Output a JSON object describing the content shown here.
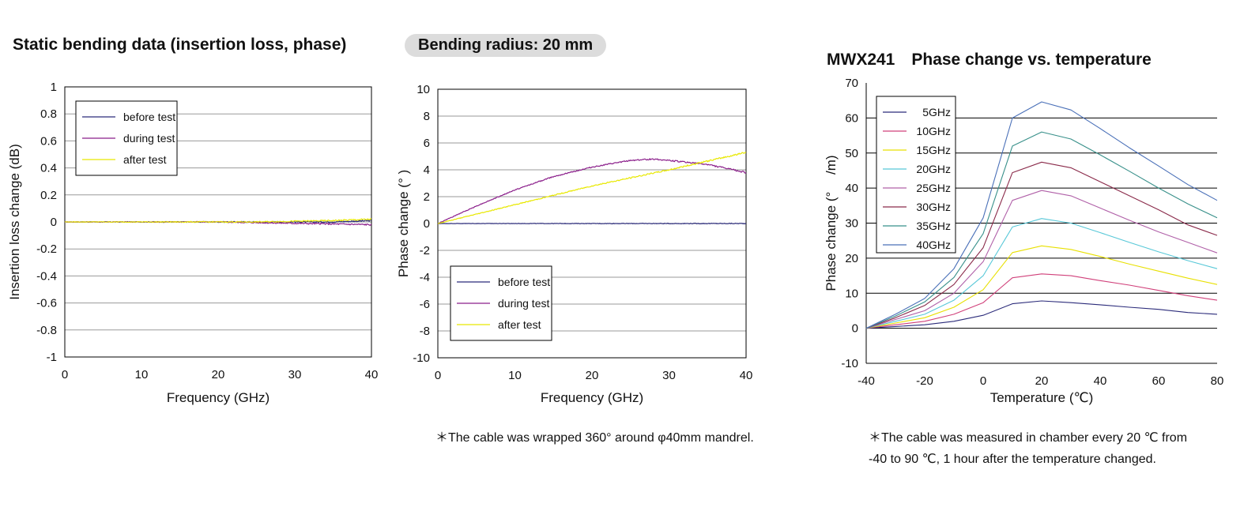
{
  "headers": {
    "left": "Static bending data (insertion loss, phase)",
    "pill": "Bending radius: 20 mm",
    "right": "MWX241　Phase change vs. temperature"
  },
  "notes": {
    "middle": "＊The cable was wrapped 360° around φ40mm mandrel.",
    "right_line1": "＊The cable was measured in chamber every 20 ℃ from",
    "right_line2": "-40 to 90 ℃, 1 hour after the temperature changed."
  },
  "colors": {
    "before": "#2b2b7a",
    "during": "#8b1f8b",
    "after": "#e8e800"
  },
  "chart_data": [
    {
      "type": "line",
      "xlabel": "Frequency (GHz)",
      "ylabel": "Insertion loss change (dB)",
      "xlim": [
        0,
        40
      ],
      "ylim": [
        -1,
        1
      ],
      "xticks": [
        0,
        10,
        20,
        30,
        40
      ],
      "yticks": [
        -1,
        -0.8,
        -0.6,
        -0.4,
        -0.2,
        0,
        0.2,
        0.4,
        0.6,
        0.8,
        1
      ],
      "ytick_labels": [
        "-1",
        "-0.8",
        "-0.6",
        "-0.4",
        "-0.2",
        "0",
        "0.2",
        "0.4",
        "0.6",
        "0.8",
        "1"
      ],
      "grid": true,
      "legend_position": "top-left",
      "series": [
        {
          "name": "before test",
          "color": "#2b2b7a",
          "x": [
            0,
            5,
            10,
            15,
            20,
            25,
            30,
            35,
            40
          ],
          "y": [
            0,
            0,
            0,
            0,
            0,
            0,
            0,
            0,
            0.01
          ]
        },
        {
          "name": "during test",
          "color": "#8b1f8b",
          "x": [
            0,
            5,
            10,
            15,
            20,
            25,
            30,
            35,
            40
          ],
          "y": [
            0,
            0,
            0,
            0,
            0,
            -0.005,
            -0.01,
            -0.015,
            -0.02
          ]
        },
        {
          "name": "after test",
          "color": "#e8e800",
          "x": [
            0,
            5,
            10,
            15,
            20,
            25,
            30,
            35,
            40
          ],
          "y": [
            0,
            0,
            0,
            0,
            0,
            0,
            0.005,
            0.01,
            0.02
          ]
        }
      ]
    },
    {
      "type": "line",
      "xlabel": "Frequency (GHz)",
      "ylabel": "Phase change (° )",
      "xlim": [
        0,
        40
      ],
      "ylim": [
        -10,
        10
      ],
      "xticks": [
        0,
        10,
        20,
        30,
        40
      ],
      "yticks": [
        -10,
        -8,
        -6,
        -4,
        -2,
        0,
        2,
        4,
        6,
        8,
        10
      ],
      "ytick_labels": [
        "-10",
        "-8",
        "-6",
        "-4",
        "-2",
        "0",
        "2",
        "4",
        "6",
        "8",
        "10"
      ],
      "grid": true,
      "legend_position": "bottom-left",
      "series": [
        {
          "name": "before test",
          "color": "#2b2b7a",
          "x": [
            0,
            10,
            20,
            30,
            40
          ],
          "y": [
            0,
            0,
            0,
            0,
            0
          ]
        },
        {
          "name": "during test",
          "color": "#8b1f8b",
          "x": [
            0,
            5,
            10,
            15,
            20,
            25,
            28,
            30,
            35,
            40
          ],
          "y": [
            0,
            1.3,
            2.5,
            3.5,
            4.2,
            4.7,
            4.8,
            4.7,
            4.4,
            3.8
          ]
        },
        {
          "name": "after test",
          "color": "#e8e800",
          "x": [
            0,
            10,
            20,
            30,
            40
          ],
          "y": [
            0,
            1.4,
            2.8,
            4.0,
            5.3
          ]
        }
      ]
    },
    {
      "type": "line",
      "xlabel": "Temperature (℃)",
      "ylabel": "Phase change (° 　/m)",
      "xlim": [
        -40,
        80
      ],
      "ylim": [
        -10,
        70
      ],
      "xticks": [
        -40,
        -20,
        0,
        20,
        40,
        60,
        80
      ],
      "yticks": [
        -10,
        0,
        10,
        20,
        30,
        40,
        50,
        60,
        70
      ],
      "ytick_labels": [
        "-10",
        "0",
        "10",
        "20",
        "30",
        "40",
        "50",
        "60",
        "70"
      ],
      "grid": true,
      "legend_position": "top-left",
      "x": [
        -40,
        -30,
        -20,
        -10,
        0,
        10,
        20,
        30,
        40,
        50,
        60,
        70,
        80
      ],
      "series": [
        {
          "name": "5GHz",
          "color": "#2b2b7a",
          "y": [
            0,
            0.5,
            1,
            2,
            3.7,
            7,
            7.8,
            7.3,
            6.7,
            6,
            5.4,
            4.5,
            4
          ]
        },
        {
          "name": "10GHz",
          "color": "#d0407a",
          "y": [
            0,
            1,
            2,
            4,
            7.3,
            14.4,
            15.5,
            15,
            13.6,
            12.3,
            10.8,
            9.3,
            8
          ]
        },
        {
          "name": "15GHz",
          "color": "#e8e000",
          "y": [
            0,
            1.5,
            3,
            6,
            11,
            21.6,
            23.5,
            22.5,
            20.5,
            18.3,
            16.3,
            14.3,
            12.5
          ]
        },
        {
          "name": "20GHz",
          "color": "#58c8d8",
          "y": [
            0,
            2,
            4,
            8,
            15,
            28.9,
            31.3,
            30,
            27.3,
            24.5,
            21.8,
            19.3,
            17
          ]
        },
        {
          "name": "25GHz",
          "color": "#b060a8",
          "y": [
            0,
            2.5,
            5,
            10,
            19,
            36.5,
            39.3,
            37.8,
            34.3,
            30.8,
            27.5,
            24.5,
            21.5
          ]
        },
        {
          "name": "30GHz",
          "color": "#8a2a4a",
          "y": [
            0,
            3,
            6.5,
            12.5,
            23,
            44.4,
            47.4,
            45.8,
            41.8,
            37.8,
            33.8,
            29.5,
            26.5
          ]
        },
        {
          "name": "35GHz",
          "color": "#38908a",
          "y": [
            0,
            3.5,
            7.5,
            14.5,
            27,
            52,
            56,
            54,
            49.5,
            44.8,
            40,
            35.5,
            31.5
          ]
        },
        {
          "name": "40GHz",
          "color": "#4a70b8",
          "y": [
            0,
            4,
            8.5,
            17,
            31.5,
            60,
            64.6,
            62.3,
            57,
            51.5,
            46.3,
            41,
            36.5
          ]
        }
      ]
    }
  ]
}
